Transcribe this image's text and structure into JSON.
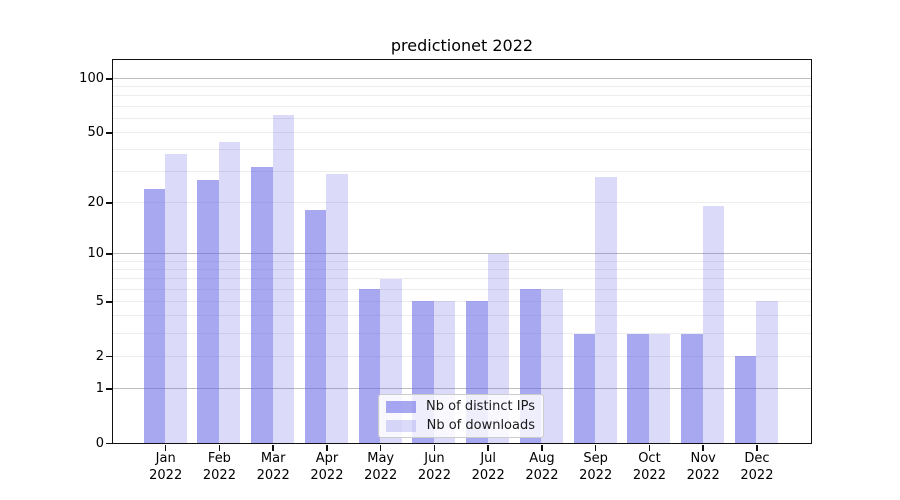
{
  "chart_data": {
    "type": "bar",
    "title": "predictionet 2022",
    "categories": [
      "Jan",
      "Feb",
      "Mar",
      "Apr",
      "May",
      "Jun",
      "Jul",
      "Aug",
      "Sep",
      "Oct",
      "Nov",
      "Dec"
    ],
    "category_year": "2022",
    "series": [
      {
        "name": "Nb of distinct IPs",
        "color": "rgba(100,100,230,0.56)",
        "color_hex_on_white": "#a8a8f0",
        "values": [
          24,
          27,
          32,
          18,
          6,
          5,
          5,
          6,
          3,
          3,
          3,
          2
        ]
      },
      {
        "name": "Nb of downloads",
        "color": "rgba(100,100,230,0.23)",
        "color_hex_on_white": "#dcdcf8",
        "values": [
          38,
          44,
          63,
          29,
          7,
          5,
          10,
          6,
          28,
          3,
          19,
          5
        ]
      }
    ],
    "xlabel": "",
    "ylabel": "",
    "yscale": "log1p",
    "ylim": [
      0,
      128
    ],
    "yticks": [
      100,
      50,
      20,
      10,
      5,
      2,
      1,
      0
    ],
    "gridlines": {
      "major": [
        1,
        10,
        100
      ],
      "minor": [
        2,
        3,
        4,
        5,
        6,
        7,
        8,
        9,
        20,
        30,
        40,
        50,
        60,
        70,
        80,
        90
      ]
    },
    "grid_on": true,
    "legend_position": "lower center"
  },
  "colors": {
    "grid_major": "#bdbdbd",
    "grid_minor": "#ececec",
    "axis_spine": "#111111",
    "text": "#000000",
    "legend_border": "#cccccc"
  }
}
